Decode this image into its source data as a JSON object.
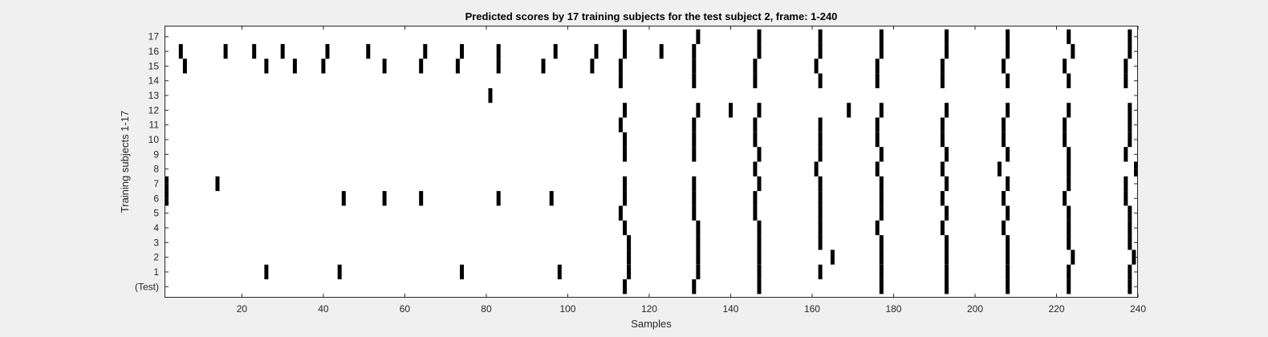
{
  "chart_data": {
    "type": "heatmap",
    "title": "Predicted scores by 17 training subjects for the test subject 2, frame: 1-240",
    "xlabel": "Samples",
    "ylabel": "Training subjects 1-17",
    "xlim": [
      1,
      240
    ],
    "x_ticks": [
      20,
      40,
      60,
      80,
      100,
      120,
      140,
      160,
      180,
      200,
      220,
      240
    ],
    "y_tick_labels": [
      "(Test)",
      "1",
      "2",
      "3",
      "4",
      "5",
      "6",
      "7",
      "8",
      "9",
      "10",
      "11",
      "12",
      "13",
      "14",
      "15",
      "16",
      "17"
    ],
    "grid": false,
    "colors": {
      "mark": "#000000",
      "background": "#ffffff",
      "figure": "#f0f0f0"
    },
    "rows": [
      {
        "label": "(Test)",
        "marks": [
          114,
          131,
          147,
          177,
          193,
          208,
          223,
          238
        ]
      },
      {
        "label": "1",
        "marks": [
          26,
          44,
          74,
          98,
          115,
          132,
          147,
          162,
          177,
          193,
          208,
          223,
          238
        ]
      },
      {
        "label": "2",
        "marks": [
          115,
          132,
          147,
          165,
          177,
          193,
          208,
          224,
          239
        ]
      },
      {
        "label": "3",
        "marks": [
          115,
          132,
          147,
          162,
          177,
          193,
          208,
          223,
          238
        ]
      },
      {
        "label": "4",
        "marks": [
          114,
          132,
          147,
          162,
          176,
          192,
          207,
          223,
          238
        ]
      },
      {
        "label": "5",
        "marks": [
          113,
          131,
          146,
          162,
          177,
          193,
          208,
          223,
          238
        ]
      },
      {
        "label": "6",
        "marks": [
          1,
          45,
          55,
          64,
          83,
          96,
          114,
          131,
          146,
          162,
          177,
          192,
          207,
          222,
          237
        ]
      },
      {
        "label": "7",
        "marks": [
          1,
          14,
          114,
          131,
          147,
          162,
          177,
          193,
          208,
          223,
          237
        ]
      },
      {
        "label": "8",
        "marks": [
          146,
          161,
          176,
          192,
          206,
          223,
          240
        ]
      },
      {
        "label": "9",
        "marks": [
          114,
          131,
          147,
          162,
          177,
          193,
          208,
          223,
          237
        ]
      },
      {
        "label": "10",
        "marks": [
          114,
          131,
          146,
          162,
          176,
          192,
          207,
          222,
          238
        ]
      },
      {
        "label": "11",
        "marks": [
          113,
          131,
          146,
          162,
          176,
          192,
          207,
          222,
          238
        ]
      },
      {
        "label": "12",
        "marks": [
          114,
          132,
          140,
          147,
          169,
          177,
          193,
          208,
          223,
          238
        ]
      },
      {
        "label": "13",
        "marks": [
          81
        ]
      },
      {
        "label": "14",
        "marks": [
          113,
          131,
          146,
          162,
          176,
          192,
          208,
          223,
          237
        ]
      },
      {
        "label": "15",
        "marks": [
          6,
          26,
          33,
          40,
          55,
          64,
          73,
          83,
          94,
          106,
          113,
          131,
          146,
          161,
          176,
          192,
          207,
          222,
          237
        ]
      },
      {
        "label": "16",
        "marks": [
          5,
          16,
          23,
          30,
          41,
          51,
          65,
          74,
          83,
          97,
          107,
          114,
          123,
          131,
          147,
          162,
          177,
          193,
          208,
          224,
          238
        ]
      },
      {
        "label": "17",
        "marks": [
          114,
          132,
          147,
          162,
          177,
          193,
          208,
          223,
          238
        ]
      }
    ]
  }
}
